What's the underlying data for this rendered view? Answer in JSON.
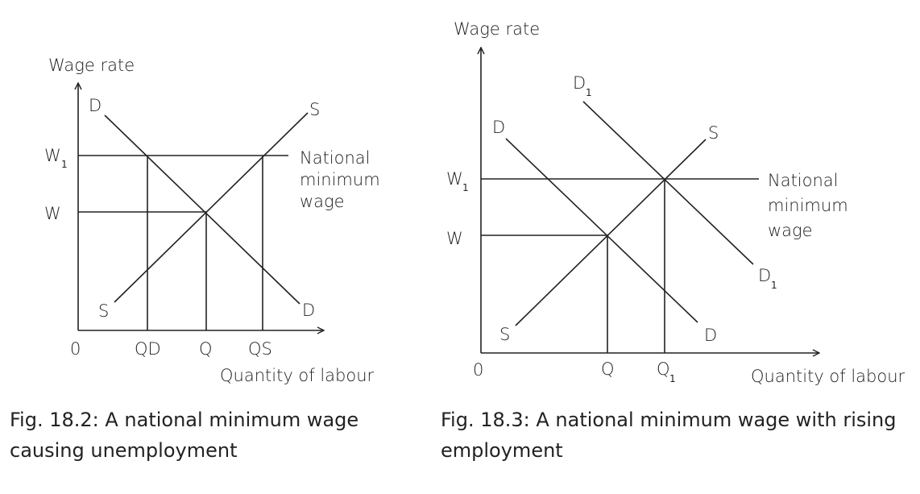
{
  "figures": [
    {
      "caption_line1": "Fig. 18.2: A national minimum wage",
      "caption_line2": "causing unemployment",
      "y_axis_label": "Wage rate",
      "x_axis_label": "Quantity of labour",
      "origin_label": "0",
      "demand_label": "D",
      "supply_label": "S",
      "wage_w1_label": "W",
      "wage_w1_subscript": "1",
      "wage_w_label": "W",
      "qd_label": "QD",
      "q_label": "Q",
      "qs_label": "QS",
      "min_wage_line1": "National",
      "min_wage_line2": "minimum",
      "min_wage_line3": "wage"
    },
    {
      "caption_line1": "Fig. 18.3: A national minimum wage with rising",
      "caption_line2": "employment",
      "y_axis_label": "Wage rate",
      "x_axis_label": "Quantity of labour",
      "origin_label": "0",
      "demand_label": "D",
      "demand1_label": "D",
      "demand1_subscript": "1",
      "supply_label": "S",
      "wage_w1_label": "W",
      "wage_w1_subscript": "1",
      "wage_w_label": "W",
      "q_label": "Q",
      "q1_label": "Q",
      "q1_subscript": "1",
      "min_wage_line1": "National",
      "min_wage_line2": "minimum",
      "min_wage_line3": "wage"
    }
  ]
}
